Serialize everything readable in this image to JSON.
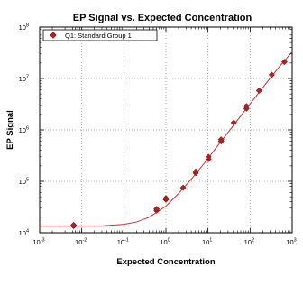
{
  "chart_data": {
    "type": "scatter",
    "title": "EP Signal vs. Expected Concentration",
    "xlabel": "Expected Concentration",
    "ylabel": "EP Signal",
    "x_scale": "log",
    "y_scale": "log",
    "xlim": [
      0.001,
      1000
    ],
    "ylim": [
      10000,
      100000000
    ],
    "x_ticks": [
      {
        "base": "10",
        "exp": "-3",
        "value": 0.001
      },
      {
        "base": "10",
        "exp": "-2",
        "value": 0.01
      },
      {
        "base": "10",
        "exp": "-1",
        "value": 0.1
      },
      {
        "base": "10",
        "exp": "0",
        "value": 1
      },
      {
        "base": "10",
        "exp": "1",
        "value": 10
      },
      {
        "base": "10",
        "exp": "2",
        "value": 100
      },
      {
        "base": "10",
        "exp": "3",
        "value": 1000
      }
    ],
    "y_ticks": [
      {
        "base": "10",
        "exp": "4",
        "value": 10000
      },
      {
        "base": "10",
        "exp": "5",
        "value": 100000
      },
      {
        "base": "10",
        "exp": "6",
        "value": 1000000
      },
      {
        "base": "10",
        "exp": "7",
        "value": 10000000
      },
      {
        "base": "10",
        "exp": "8",
        "value": 100000000
      }
    ],
    "grid": true,
    "legend_position": "top-left",
    "series": [
      {
        "name": "Q1: Standard Group 1",
        "color": "#b22222",
        "marker": "diamond",
        "points": [
          {
            "x": 0.0064,
            "y": 13500
          },
          {
            "x": 0.0064,
            "y": 14200
          },
          {
            "x": 0.6,
            "y": 27000
          },
          {
            "x": 0.6,
            "y": 29000
          },
          {
            "x": 1.0,
            "y": 44000
          },
          {
            "x": 1.0,
            "y": 47000
          },
          {
            "x": 2.56,
            "y": 75000
          },
          {
            "x": 5.12,
            "y": 145000
          },
          {
            "x": 5.12,
            "y": 155000
          },
          {
            "x": 10.24,
            "y": 270000
          },
          {
            "x": 10.24,
            "y": 300000
          },
          {
            "x": 20.48,
            "y": 600000
          },
          {
            "x": 20.48,
            "y": 650000
          },
          {
            "x": 40.96,
            "y": 1380000
          },
          {
            "x": 81.92,
            "y": 2600000
          },
          {
            "x": 81.92,
            "y": 2900000
          },
          {
            "x": 163.84,
            "y": 5800000
          },
          {
            "x": 327.68,
            "y": 11800000
          },
          {
            "x": 655.36,
            "y": 21000000
          }
        ]
      }
    ],
    "fit_curve": {
      "color": "#cc3333",
      "x": [
        0.001,
        0.003,
        0.01,
        0.03,
        0.1,
        0.2,
        0.4,
        0.7,
        1,
        2,
        4,
        8,
        16,
        32,
        64,
        128,
        256,
        512,
        1000
      ],
      "y": [
        13500,
        13500,
        13520,
        13600,
        14600,
        16200,
        20000,
        27000,
        33000,
        58000,
        110000,
        220000,
        460000,
        960000,
        2000000,
        4150000,
        8600000,
        17500000,
        33000000
      ]
    }
  }
}
